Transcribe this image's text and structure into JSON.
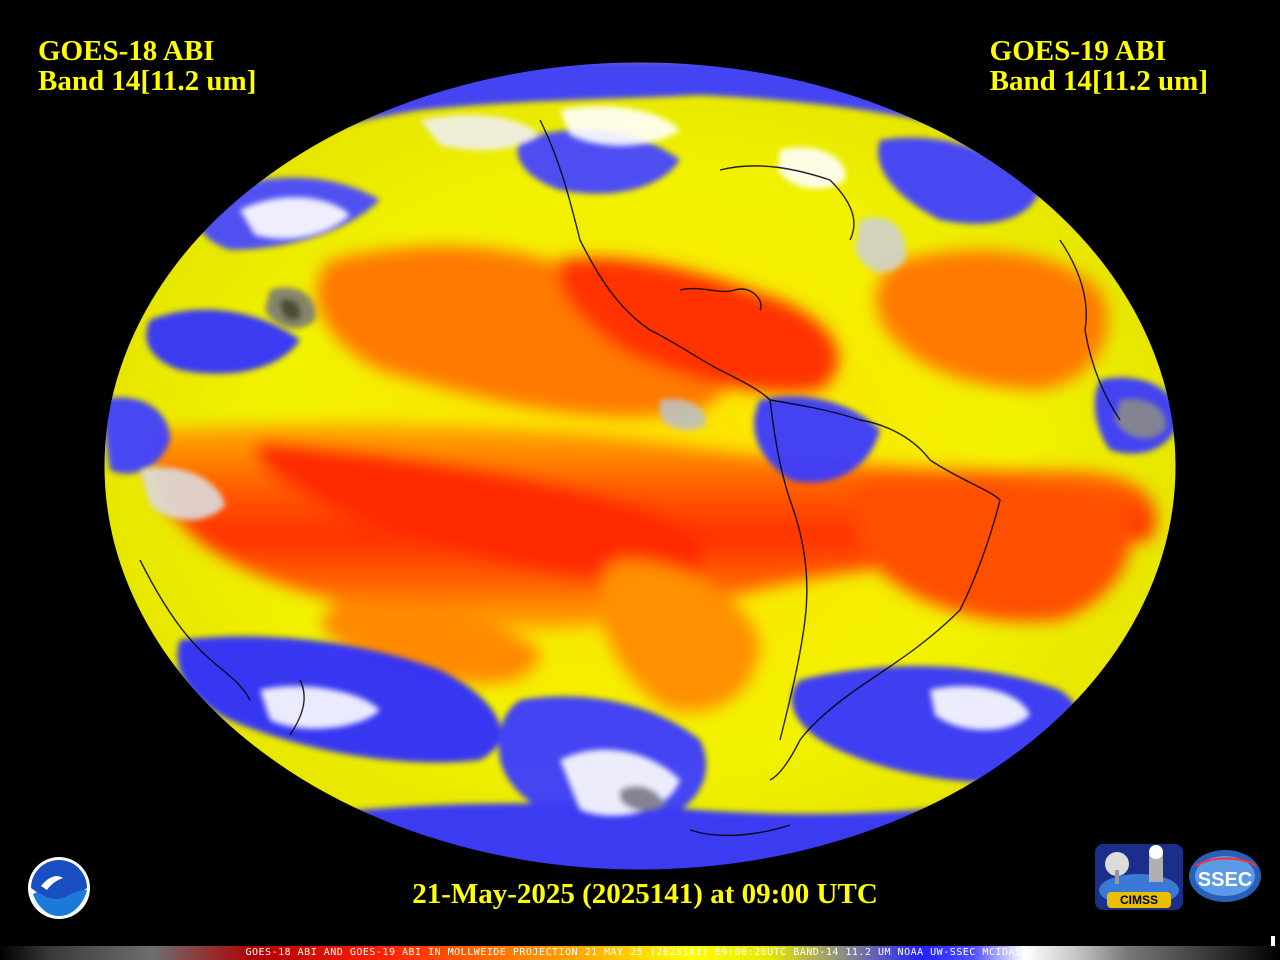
{
  "header": {
    "left_line1": "GOES-18 ABI",
    "left_line2": "Band 14[11.2 um]",
    "right_line1": "GOES-19 ABI",
    "right_line2": "Band 14[11.2 um]"
  },
  "date_label": "21-May-2025 (2025141) at 09:00 UTC",
  "colorbar_caption": "GOES-18 ABI AND GOES-19 ABI IN MOLLWEIDE PROJECTION 21 MAY 25 (2025141) 09:00:20UTC BAND-14 11.2 UM NOAA UW-SSEC MCIDAS-X",
  "logos": {
    "noaa": "NOAA",
    "cimss": "CIMSS",
    "ssec": "SSEC"
  },
  "colors": {
    "text": "#ffff00",
    "background": "#000000",
    "warm_orange": "#ff6a00",
    "warm_red": "#ff2a00",
    "mid_yellow": "#ffff00",
    "cold_blue": "#2a2aff",
    "coldest_white": "#ffffff"
  }
}
